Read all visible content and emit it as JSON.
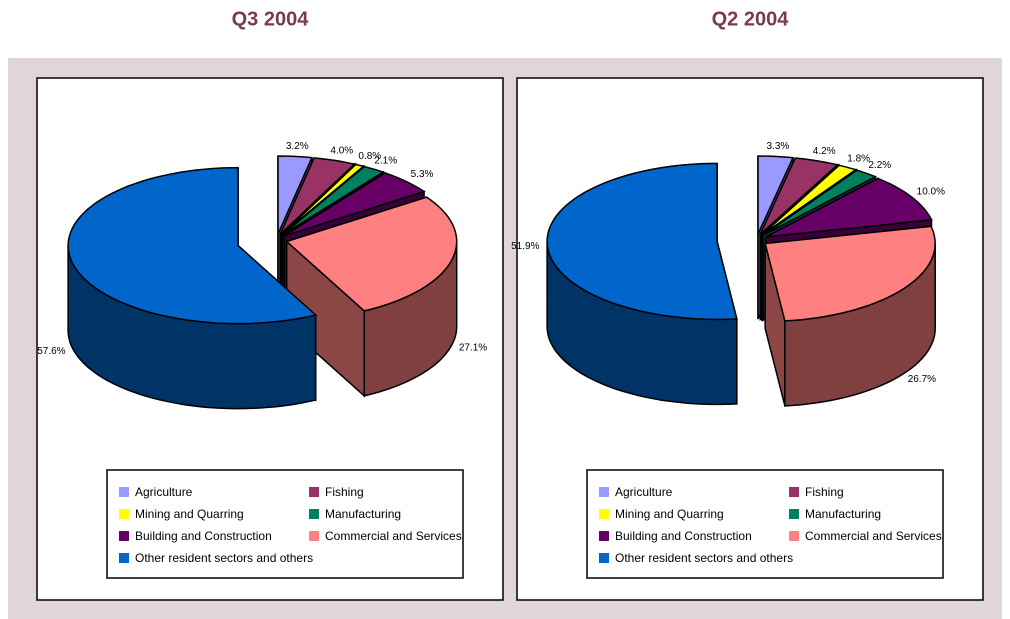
{
  "chart_data": [
    {
      "type": "pie3d",
      "title": "Q3 2004",
      "categories": [
        "Agriculture",
        "Fishing",
        "Mining and Quarring",
        "Manufacturing",
        "Building and Construction",
        "Commercial and Services",
        "Other resident sectors and others"
      ],
      "values": [
        3.2,
        4.0,
        0.8,
        2.1,
        5.3,
        27.1,
        57.6
      ],
      "value_labels": [
        "3.2%",
        "4.0%",
        "0.8%",
        "2.1%",
        "5.3%",
        "27.1%",
        "57.6%"
      ],
      "colors": [
        "#9999ff",
        "#993366",
        "#ffff00",
        "#008060",
        "#660066",
        "#ff8080",
        "#0066cc"
      ]
    },
    {
      "type": "pie3d",
      "title": "Q2 2004",
      "categories": [
        "Agriculture",
        "Fishing",
        "Mining and Quarring",
        "Manufacturing",
        "Building and Construction",
        "Commercial and Services",
        "Other resident sectors and others"
      ],
      "values": [
        3.3,
        4.2,
        1.8,
        2.2,
        10.0,
        26.7,
        51.9
      ],
      "value_labels": [
        "3.3%",
        "4.2%",
        "1.8%",
        "2.2%",
        "10.0%",
        "26.7%",
        "51.9%"
      ],
      "colors": [
        "#9999ff",
        "#993366",
        "#ffff00",
        "#008060",
        "#660066",
        "#ff8080",
        "#0066cc"
      ]
    }
  ]
}
